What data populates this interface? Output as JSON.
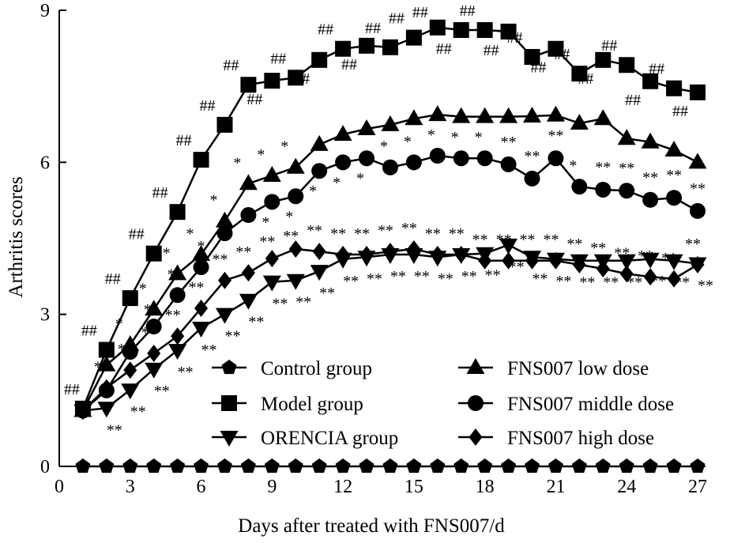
{
  "chart_data": {
    "type": "line",
    "title": "",
    "xlabel": "Days after treated with FNS007/d",
    "ylabel": "Arthritis scores",
    "xlim": [
      0,
      27
    ],
    "ylim": [
      0,
      9
    ],
    "xticks": [
      "0",
      "3",
      "6",
      "9",
      "12",
      "15",
      "18",
      "21",
      "24",
      "27"
    ],
    "yticks": [
      "0",
      "3",
      "6",
      "9"
    ],
    "grid": false,
    "legend_position": "bottom-right",
    "x": [
      1,
      2,
      3,
      4,
      5,
      6,
      7,
      8,
      9,
      10,
      11,
      12,
      13,
      14,
      15,
      16,
      17,
      18,
      19,
      20,
      21,
      22,
      23,
      24,
      25,
      26,
      27
    ],
    "series": [
      {
        "name": "Control group",
        "marker": "pentagon",
        "values": [
          0,
          0,
          0,
          0,
          0,
          0,
          0,
          0,
          0,
          0,
          0,
          0,
          0,
          0,
          0,
          0,
          0,
          0,
          0,
          0,
          0,
          0,
          0,
          0,
          0,
          0,
          0
        ]
      },
      {
        "name": "Model group",
        "marker": "square",
        "values": [
          1.14,
          2.3,
          3.32,
          4.2,
          5.02,
          6.05,
          6.74,
          7.53,
          7.61,
          7.67,
          8.02,
          8.24,
          8.3,
          8.27,
          8.46,
          8.66,
          8.61,
          8.61,
          8.58,
          8.08,
          8.24,
          7.75,
          8.02,
          7.92,
          7.6,
          7.46,
          7.38
        ]
      },
      {
        "name": "ORENCIA group",
        "marker": "triangle-down",
        "values": [
          1.1,
          1.15,
          1.51,
          1.92,
          2.29,
          2.73,
          3.0,
          3.28,
          3.64,
          3.67,
          3.85,
          4.09,
          4.13,
          4.18,
          4.18,
          4.13,
          4.18,
          4.2,
          4.37,
          4.13,
          4.09,
          4.06,
          4.06,
          4.06,
          4.09,
          4.06,
          4.0
        ]
      },
      {
        "name": "FNS007 low dose",
        "marker": "triangle-up",
        "values": [
          1.1,
          2.0,
          2.4,
          3.1,
          3.8,
          4.18,
          4.84,
          5.58,
          5.74,
          5.9,
          6.35,
          6.55,
          6.66,
          6.74,
          6.86,
          6.94,
          6.9,
          6.9,
          6.9,
          6.91,
          6.93,
          6.77,
          6.86,
          6.47,
          6.4,
          6.24,
          6.0
        ]
      },
      {
        "name": "FNS007 middle dose",
        "marker": "circle",
        "values": [
          1.1,
          1.5,
          2.26,
          2.76,
          3.38,
          3.93,
          4.6,
          4.96,
          5.22,
          5.33,
          5.83,
          6.0,
          6.08,
          5.9,
          6.0,
          6.13,
          6.08,
          6.08,
          5.96,
          5.68,
          6.08,
          5.52,
          5.46,
          5.44,
          5.26,
          5.3,
          5.04
        ]
      },
      {
        "name": "FNS007 high dose",
        "marker": "diamond",
        "values": [
          1.1,
          1.55,
          1.9,
          2.23,
          2.57,
          3.12,
          3.67,
          3.82,
          4.1,
          4.29,
          4.24,
          4.18,
          4.18,
          4.24,
          4.29,
          4.18,
          4.18,
          4.06,
          4.06,
          4.06,
          4.06,
          3.98,
          3.9,
          3.8,
          3.74,
          3.7,
          3.98
        ]
      }
    ],
    "annotations": {
      "model_vs_control": {
        "text": "##",
        "series": "Model group",
        "days": [
          1,
          2,
          3,
          4,
          5,
          6,
          7,
          8,
          9,
          10,
          11,
          12,
          13,
          14,
          15,
          16,
          17,
          18,
          19,
          20,
          21,
          22,
          23,
          24,
          25,
          26,
          27
        ]
      },
      "low_vs_model": {
        "text": "*",
        "series": "FNS007 low dose",
        "days": [
          3,
          4,
          5,
          6,
          7,
          8,
          9,
          10
        ]
      },
      "middle_vs_model_single": {
        "text": "*",
        "series": "FNS007 middle dose",
        "days": [
          4,
          5,
          6,
          9,
          10,
          11,
          12,
          13,
          14,
          15,
          16,
          17,
          18,
          22
        ]
      },
      "middle_vs_model_double": {
        "text": "**",
        "series": "FNS007 middle dose",
        "days": [
          19,
          20,
          21,
          23,
          24,
          25,
          26,
          27
        ]
      },
      "high_vs_model": {
        "text": "**",
        "series": "FNS007 high dose",
        "days": [
          2,
          3,
          4,
          5,
          6,
          7,
          8,
          9,
          10,
          11,
          12,
          13,
          14,
          15,
          16,
          17,
          18,
          19,
          20,
          21,
          22,
          23,
          24,
          25,
          26,
          27
        ]
      },
      "orencia_vs_model": {
        "text": "**",
        "series": "ORENCIA group",
        "days": [
          2,
          3,
          4,
          5,
          6,
          7,
          8,
          9,
          10,
          11,
          12,
          13,
          14,
          15,
          16,
          17,
          18,
          19,
          20,
          21,
          22,
          23,
          24,
          25,
          26,
          27
        ]
      }
    }
  }
}
